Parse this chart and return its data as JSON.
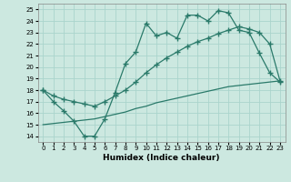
{
  "xlabel": "Humidex (Indice chaleur)",
  "xlim": [
    -0.5,
    23.5
  ],
  "ylim": [
    13.5,
    25.5
  ],
  "xticks": [
    0,
    1,
    2,
    3,
    4,
    5,
    6,
    7,
    8,
    9,
    10,
    11,
    12,
    13,
    14,
    15,
    16,
    17,
    18,
    19,
    20,
    21,
    22,
    23
  ],
  "yticks": [
    14,
    15,
    16,
    17,
    18,
    19,
    20,
    21,
    22,
    23,
    24,
    25
  ],
  "bg_color": "#cce8e0",
  "grid_color": "#aad4cc",
  "line_color": "#2a7a6a",
  "line1_x": [
    0,
    1,
    2,
    3,
    4,
    5,
    6,
    7,
    8,
    9,
    10,
    11,
    12,
    13,
    14,
    15,
    16,
    17,
    18,
    19,
    20,
    21,
    22,
    23
  ],
  "line1_y": [
    18.0,
    17.0,
    16.2,
    15.3,
    14.0,
    14.0,
    15.5,
    17.8,
    20.3,
    21.3,
    23.8,
    22.7,
    23.0,
    22.5,
    24.5,
    24.5,
    24.0,
    24.9,
    24.7,
    23.2,
    23.0,
    21.2,
    19.5,
    18.7
  ],
  "line2_x": [
    0,
    1,
    2,
    3,
    4,
    5,
    6,
    7,
    8,
    9,
    10,
    11,
    12,
    13,
    14,
    15,
    16,
    17,
    18,
    19,
    20,
    21,
    22,
    23
  ],
  "line2_y": [
    18.0,
    17.5,
    17.2,
    17.0,
    16.8,
    16.6,
    17.0,
    17.5,
    18.0,
    18.7,
    19.5,
    20.2,
    20.8,
    21.3,
    21.8,
    22.2,
    22.5,
    22.9,
    23.2,
    23.5,
    23.3,
    23.0,
    22.0,
    18.8
  ],
  "line3_x": [
    0,
    1,
    2,
    3,
    4,
    5,
    6,
    7,
    8,
    9,
    10,
    11,
    12,
    13,
    14,
    15,
    16,
    17,
    18,
    19,
    20,
    21,
    22,
    23
  ],
  "line3_y": [
    15.0,
    15.1,
    15.2,
    15.3,
    15.4,
    15.5,
    15.7,
    15.9,
    16.1,
    16.4,
    16.6,
    16.9,
    17.1,
    17.3,
    17.5,
    17.7,
    17.9,
    18.1,
    18.3,
    18.4,
    18.5,
    18.6,
    18.7,
    18.8
  ]
}
